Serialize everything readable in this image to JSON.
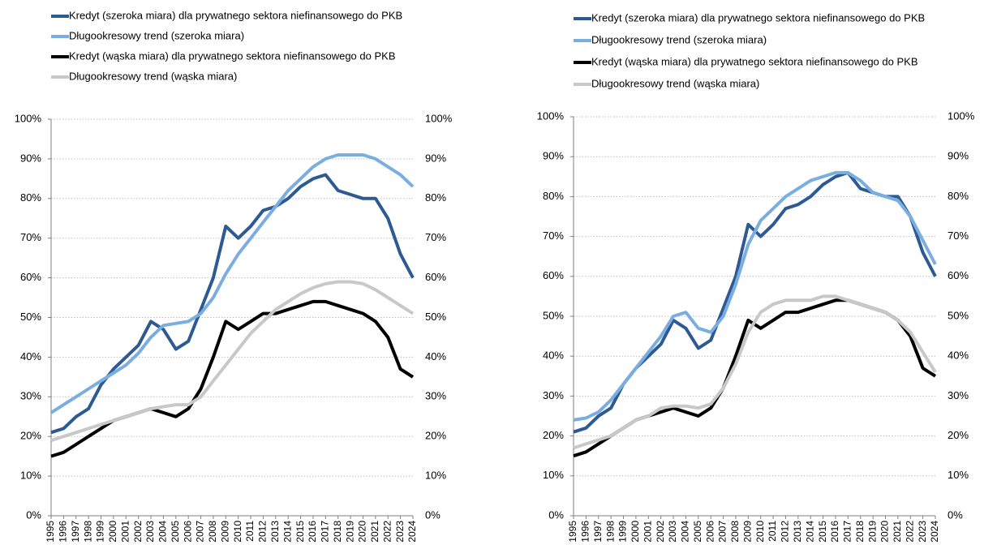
{
  "chart_data": [
    {
      "type": "line",
      "categories": [
        "1995",
        "1996",
        "1997",
        "1998",
        "1999",
        "2000",
        "2001",
        "2002",
        "2003",
        "2004",
        "2005",
        "2006",
        "2007",
        "2008",
        "2009",
        "2010",
        "2011",
        "2012",
        "2013",
        "2014",
        "2015",
        "2016",
        "2017",
        "2018",
        "2019",
        "2020",
        "2021",
        "2022",
        "2023",
        "2024"
      ],
      "series": [
        {
          "name": "Kredyt (szeroka miara) dla prywatnego sektora niefinansowego do PKB",
          "color": "#2e5a94",
          "values": [
            21,
            22,
            25,
            27,
            33,
            37,
            40,
            43,
            49,
            47,
            42,
            44,
            52,
            60,
            73,
            70,
            73,
            77,
            78,
            80,
            83,
            85,
            86,
            82,
            81,
            80,
            80,
            75,
            66,
            60
          ]
        },
        {
          "name": "Długookresowy trend (szeroka miara)",
          "color": "#7aaee0",
          "values": [
            26,
            28,
            30,
            32,
            34,
            36,
            38,
            41,
            45,
            48,
            48.5,
            49,
            51,
            55,
            61,
            66,
            70,
            74,
            78,
            82,
            85,
            88,
            90,
            91,
            91,
            91,
            90,
            88,
            86,
            83
          ]
        },
        {
          "name": "Kredyt (wąska miara) dla prywatnego sektora niefinansowego do PKB",
          "color": "#000000",
          "values": [
            15,
            16,
            18,
            20,
            22,
            24,
            25,
            26,
            27,
            26,
            25,
            27,
            32,
            40,
            49,
            47,
            49,
            51,
            51,
            52,
            53,
            54,
            54,
            53,
            52,
            51,
            49,
            45,
            37,
            35
          ]
        },
        {
          "name": "Długookresowy trend (wąska miara)",
          "color": "#c8c8c8",
          "values": [
            19,
            20,
            21,
            22,
            23,
            24,
            25,
            26,
            27,
            27.5,
            28,
            28,
            30,
            34,
            38,
            42,
            46,
            49,
            52,
            54,
            56,
            57.5,
            58.5,
            59,
            59,
            58.5,
            57,
            55,
            53,
            51
          ]
        }
      ],
      "ylim": [
        0,
        100
      ],
      "yticks": [
        {
          "value": 0,
          "label": "0%"
        },
        {
          "value": 10,
          "label": "10%"
        },
        {
          "value": 20,
          "label": "20%"
        },
        {
          "value": 30,
          "label": "30%"
        },
        {
          "value": 40,
          "label": "40%"
        },
        {
          "value": 50,
          "label": "50%"
        },
        {
          "value": 60,
          "label": "60%"
        },
        {
          "value": 70,
          "label": "70%"
        },
        {
          "value": 80,
          "label": "80%"
        },
        {
          "value": 90,
          "label": "90%"
        },
        {
          "value": 100,
          "label": "100%"
        }
      ],
      "y2lim": [
        0,
        100
      ],
      "y2ticks": [
        {
          "value": 0,
          "label": "0%"
        },
        {
          "value": 10,
          "label": "10%"
        },
        {
          "value": 20,
          "label": "20%"
        },
        {
          "value": 30,
          "label": "30%"
        },
        {
          "value": 40,
          "label": "40%"
        },
        {
          "value": 50,
          "label": "50%"
        },
        {
          "value": 60,
          "label": "60%"
        },
        {
          "value": 70,
          "label": "70%"
        },
        {
          "value": 80,
          "label": "80%"
        },
        {
          "value": 90,
          "label": "90%"
        },
        {
          "value": 100,
          "label": "100%"
        }
      ],
      "grid": true,
      "legend": "top"
    },
    {
      "type": "line",
      "categories": [
        "1995",
        "1996",
        "1997",
        "1998",
        "1999",
        "2000",
        "2001",
        "2002",
        "2003",
        "2004",
        "2005",
        "2006",
        "2007",
        "2008",
        "2009",
        "2010",
        "2011",
        "2012",
        "2013",
        "2014",
        "2015",
        "2016",
        "2017",
        "2018",
        "2019",
        "2020",
        "2021",
        "2022",
        "2023",
        "2024"
      ],
      "series": [
        {
          "name": "Kredyt (szeroka miara) dla prywatnego sektora niefinansowego do PKB",
          "color": "#2e5a94",
          "values": [
            21,
            22,
            25,
            27,
            33,
            37,
            40,
            43,
            49,
            47,
            42,
            44,
            52,
            60,
            73,
            70,
            73,
            77,
            78,
            80,
            83,
            85,
            86,
            82,
            81,
            80,
            80,
            75,
            66,
            60
          ]
        },
        {
          "name": "Długookresowy trend (szeroka miara)",
          "color": "#7aaee0",
          "values": [
            24,
            24.5,
            26,
            29,
            33,
            37,
            41,
            45,
            50,
            51,
            47,
            46,
            50,
            58,
            68,
            74,
            77,
            80,
            82,
            84,
            85,
            86,
            86,
            84,
            81,
            80,
            79,
            75,
            69,
            63
          ]
        },
        {
          "name": "Kredyt (wąska miara) dla prywatnego sektora niefinansowego do PKB",
          "color": "#000000",
          "values": [
            15,
            16,
            18,
            20,
            22,
            24,
            25,
            26,
            27,
            26,
            25,
            27,
            32,
            40,
            49,
            47,
            49,
            51,
            51,
            52,
            53,
            54,
            54,
            53,
            52,
            51,
            49,
            45,
            37,
            35
          ]
        },
        {
          "name": "Długookresowy trend (wąska miara)",
          "color": "#c8c8c8",
          "values": [
            17,
            18,
            19,
            20,
            22,
            24,
            25,
            27,
            27.5,
            27.5,
            27,
            28,
            32,
            38,
            46,
            51,
            53,
            54,
            54,
            54,
            55,
            55,
            54,
            53,
            52,
            51,
            49,
            46,
            41,
            36
          ]
        }
      ],
      "ylim": [
        0,
        100
      ],
      "yticks": [
        {
          "value": 0,
          "label": "0%"
        },
        {
          "value": 10,
          "label": "10%"
        },
        {
          "value": 20,
          "label": "20%"
        },
        {
          "value": 30,
          "label": "30%"
        },
        {
          "value": 40,
          "label": "40%"
        },
        {
          "value": 50,
          "label": "50%"
        },
        {
          "value": 60,
          "label": "60%"
        },
        {
          "value": 70,
          "label": "70%"
        },
        {
          "value": 80,
          "label": "80%"
        },
        {
          "value": 90,
          "label": "90%"
        },
        {
          "value": 100,
          "label": "100%"
        }
      ],
      "y2lim": [
        0,
        100
      ],
      "y2ticks": [
        {
          "value": 0,
          "label": "0%"
        },
        {
          "value": 10,
          "label": "10%"
        },
        {
          "value": 20,
          "label": "20%"
        },
        {
          "value": 30,
          "label": "30%"
        },
        {
          "value": 40,
          "label": "40%"
        },
        {
          "value": 50,
          "label": "50%"
        },
        {
          "value": 60,
          "label": "60%"
        },
        {
          "value": 70,
          "label": "70%"
        },
        {
          "value": 80,
          "label": "80%"
        },
        {
          "value": 90,
          "label": "90%"
        },
        {
          "value": 100,
          "label": "100%"
        }
      ],
      "grid": true,
      "legend": "top"
    }
  ]
}
